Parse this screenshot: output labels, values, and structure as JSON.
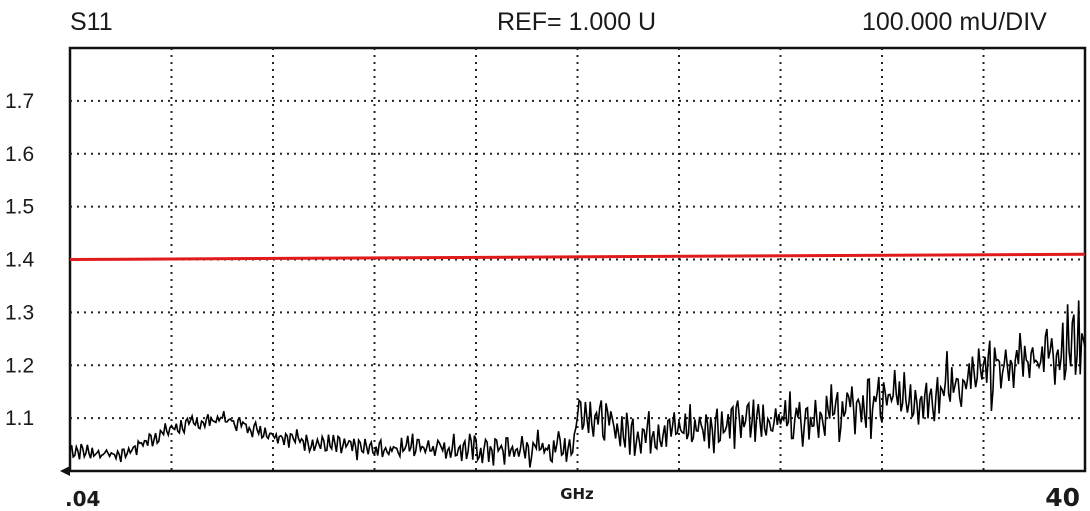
{
  "header": {
    "param": "S11",
    "reference": "REF= 1.000 U",
    "scale": "100.000 mU/DIV"
  },
  "chart_data": {
    "type": "line",
    "title": "",
    "xlabel": "GHz",
    "ylabel": "",
    "x_start_label": ".04",
    "x_end_label": "40",
    "x_range": [
      0.04,
      40
    ],
    "ylim": [
      1.0,
      1.8
    ],
    "y_tick_labels": [
      "1.7",
      "1.6",
      "1.5",
      "1.4",
      "1.3",
      "1.2",
      "1.1"
    ],
    "y_ticks": [
      1.7,
      1.6,
      1.5,
      1.4,
      1.3,
      1.2,
      1.1
    ],
    "grid": true,
    "grid_divisions": {
      "x": 10,
      "y": 8
    },
    "series": [
      {
        "color": "#000000",
        "x": [
          0.04,
          2.0,
          4.0,
          6.0,
          8.0,
          10.0,
          12.0,
          14.0,
          16.0,
          18.0,
          19.9,
          20.0,
          22.0,
          24.0,
          26.0,
          28.0,
          30.0,
          32.0,
          34.0,
          36.0,
          38.0,
          40.0
        ],
        "y": [
          1.04,
          1.03,
          1.08,
          1.1,
          1.07,
          1.05,
          1.04,
          1.05,
          1.04,
          1.04,
          1.05,
          1.12,
          1.07,
          1.08,
          1.09,
          1.1,
          1.11,
          1.13,
          1.15,
          1.18,
          1.22,
          1.25
        ]
      },
      {
        "color": "#e01b1b",
        "x": [
          0.04,
          40.0
        ],
        "y": [
          1.4,
          1.41
        ]
      }
    ]
  }
}
